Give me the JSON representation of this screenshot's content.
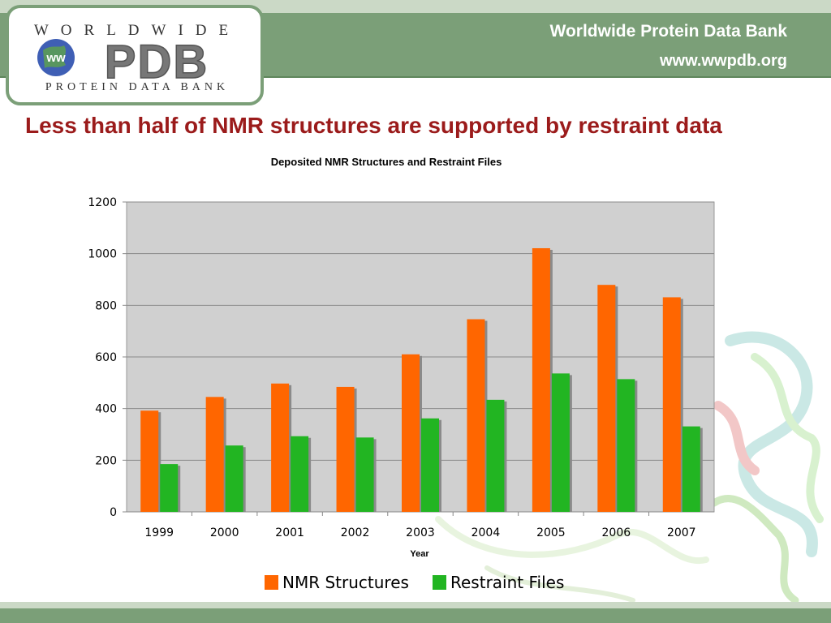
{
  "header": {
    "site_title": "Worldwide Protein Data Bank",
    "site_url": "www.wwpdb.org"
  },
  "logo": {
    "top_text": "WORLDWIDE",
    "main_text": "PDB",
    "badge_text": "ww",
    "bottom_text": "PROTEIN DATA BANK"
  },
  "slide": {
    "title": "Less than half of NMR structures are supported by restraint data"
  },
  "colors": {
    "header_green": "#7b9f78",
    "title_red": "#9b1b1b",
    "nmr_orange": "#ff6600",
    "restraint_green": "#22b522",
    "plot_bg": "#d0d0d0"
  },
  "chart_data": {
    "type": "bar",
    "title": "Deposited NMR Structures and Restraint Files",
    "xlabel": "Year",
    "ylabel": "",
    "categories": [
      "1999",
      "2000",
      "2001",
      "2002",
      "2003",
      "2004",
      "2005",
      "2006",
      "2007"
    ],
    "series": [
      {
        "name": "NMR Structures",
        "color": "#ff6600",
        "values": [
          392,
          445,
          497,
          484,
          610,
          746,
          1021,
          879,
          831
        ]
      },
      {
        "name": "Restraint Files",
        "color": "#22b522",
        "values": [
          185,
          257,
          293,
          288,
          362,
          434,
          536,
          514,
          331
        ]
      }
    ],
    "ylim": [
      0,
      1200
    ],
    "yticks": [
      "0",
      "200",
      "400",
      "600",
      "800",
      "1000",
      "1200"
    ],
    "grid": true,
    "legend": "bottom"
  }
}
